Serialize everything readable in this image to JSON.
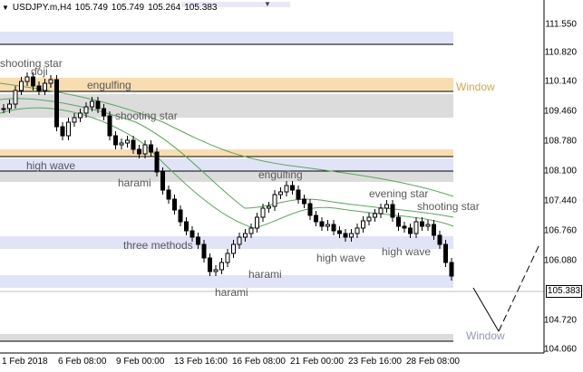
{
  "header": {
    "symbol": "USDJPY.m,H4",
    "open": "105.749",
    "high": "105.749",
    "low": "105.264",
    "close": "105.383",
    "arrow_icon": "triangle-down-icon"
  },
  "price_axis": {
    "labels": [
      "111.550",
      "110.820",
      "110.140",
      "109.460",
      "108.780",
      "108.100",
      "107.440",
      "106.760",
      "106.080",
      "104.720",
      "104.060"
    ],
    "current_price": "105.383"
  },
  "time_axis": {
    "labels": [
      "1 Feb 2018",
      "6 Feb 08:00",
      "9 Feb 00:00",
      "13 Feb 16:00",
      "16 Feb 08:00",
      "21 Feb 00:00",
      "23 Feb 16:00",
      "28 Feb 08:00"
    ]
  },
  "annotations": {
    "shooting_star_1": "shooting star",
    "doji": "doji",
    "engulfing_1": "engulfing",
    "window_1": "Window",
    "shooting_star_2": "shooting star",
    "high_wave_1": "high wave",
    "harami_1": "harami",
    "engulfing_2": "engulfing",
    "evening_star": "evening star",
    "shooting_star_3": "shooting star",
    "three_methods": "three methods",
    "high_wave_2": "high wave",
    "high_wave_3": "high wave",
    "harami_2": "harami",
    "harami_3": "harami",
    "window_2": "Window"
  },
  "colors": {
    "zone_blue": "#e1e3f7",
    "zone_orange": "#f8ddb1",
    "zone_gray": "#dcdcdc",
    "ma_line": "#59a659",
    "candle": "#000000",
    "window_label": "#d9a540",
    "window_label_gray": "#8a9bb0"
  }
}
